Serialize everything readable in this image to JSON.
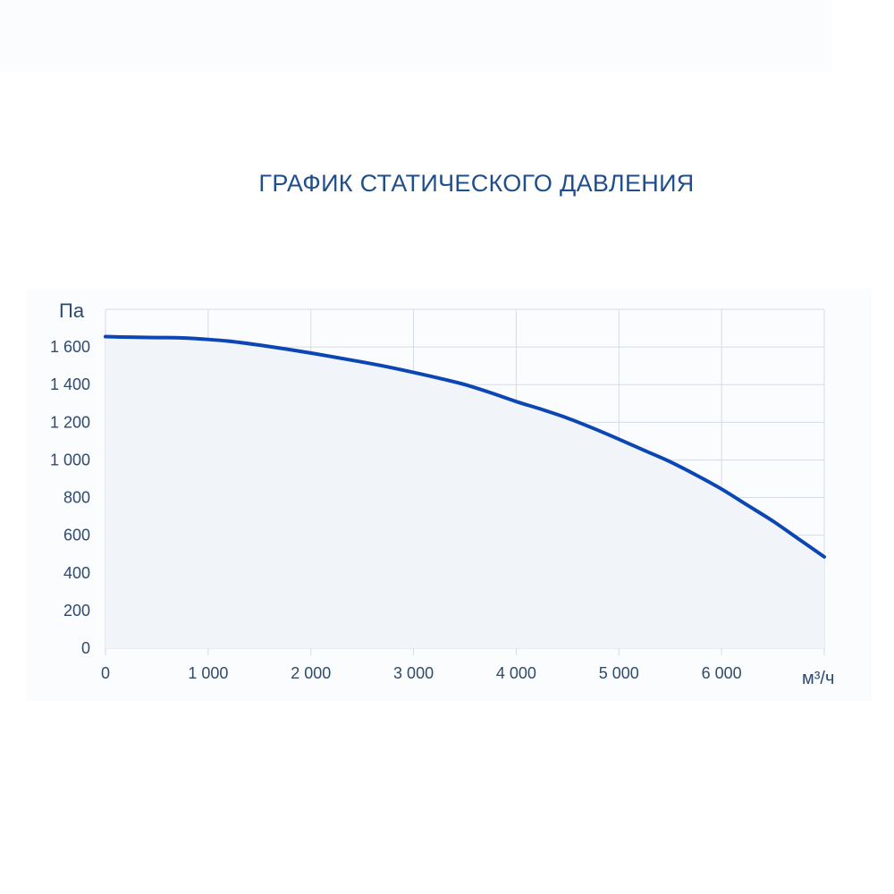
{
  "chart_data": {
    "type": "area",
    "title": "ГРАФИК СТАТИЧЕСКОГО ДАВЛЕНИЯ",
    "ylabel": "Па",
    "xlabel": "м³/ч",
    "xlim": [
      0,
      7000
    ],
    "ylim": [
      0,
      1800
    ],
    "x_ticks": [
      0,
      1000,
      2000,
      3000,
      4000,
      5000,
      6000
    ],
    "x_tick_labels": [
      "0",
      "1 000",
      "2 000",
      "3 000",
      "4 000",
      "5 000",
      "6 000"
    ],
    "y_ticks": [
      0,
      200,
      400,
      600,
      800,
      1000,
      1200,
      1400,
      1600
    ],
    "y_tick_labels": [
      "0",
      "200",
      "400",
      "600",
      "800",
      "1 000",
      "1 200",
      "1 400",
      "1 600"
    ],
    "grid": true,
    "series": [
      {
        "x": [
          0,
          250,
          500,
          750,
          1000,
          1250,
          1500,
          1750,
          2000,
          2250,
          2500,
          2750,
          3000,
          3250,
          3500,
          3750,
          4000,
          4250,
          4500,
          4750,
          5000,
          5250,
          5500,
          5750,
          6000,
          6250,
          6500,
          6750,
          7000
        ],
        "values": [
          1655,
          1652,
          1650,
          1648,
          1640,
          1628,
          1610,
          1590,
          1568,
          1544,
          1520,
          1494,
          1465,
          1434,
          1400,
          1357,
          1310,
          1268,
          1222,
          1168,
          1110,
          1050,
          990,
          920,
          845,
          760,
          675,
          580,
          485
        ]
      }
    ],
    "colors": {
      "line": "#0b46b4",
      "fill": "#f1f4f9",
      "grid": "#d6dce6",
      "title": "#1f4e8c",
      "text": "#2e4a6e"
    }
  }
}
